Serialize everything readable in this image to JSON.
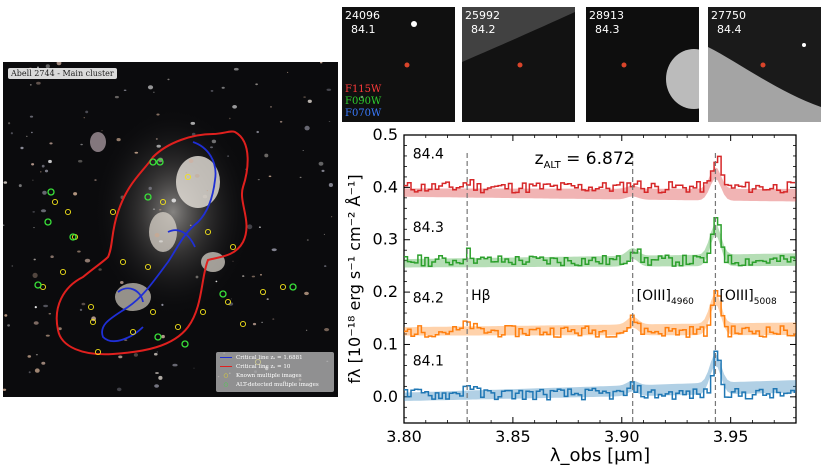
{
  "cluster_image": {
    "title": "Abell 2744 - Main cluster",
    "legend": [
      {
        "label": "Critical line zₛ = 1.6881",
        "color": "#1f2fd6",
        "kind": "line"
      },
      {
        "label": "Critical line zₛ = 10",
        "color": "#e0201e",
        "kind": "line"
      },
      {
        "label": "Known multiple images",
        "color": "#f2e21a",
        "kind": "ring"
      },
      {
        "label": "ALT-detected multiple images",
        "color": "#3ae23a",
        "kind": "ring"
      }
    ]
  },
  "thumbnails": [
    {
      "id": "24096",
      "label": "84.1"
    },
    {
      "id": "25992",
      "label": "84.2"
    },
    {
      "id": "28913",
      "label": "84.3"
    },
    {
      "id": "27750",
      "label": "84.4"
    }
  ],
  "filters": [
    {
      "name": "F115W",
      "color": "#ff3b3b"
    },
    {
      "name": "F090W",
      "color": "#2fcf2f"
    },
    {
      "name": "F070W",
      "color": "#3a7bff"
    }
  ],
  "chart_data": {
    "type": "line",
    "title": "z_ALT = 6.872",
    "redshift_label": "z",
    "redshift_sub": "ALT",
    "redshift_value": "= 6.872",
    "xlabel": "λ_obs [μm]",
    "ylabel": "fλ [10⁻¹⁸ erg s⁻¹ cm⁻² Å⁻¹]",
    "xlim": [
      3.8,
      3.98
    ],
    "ylim": [
      -0.05,
      0.5
    ],
    "xticks": [
      3.8,
      3.85,
      3.9,
      3.95
    ],
    "xtick_labels": [
      "3.80",
      "3.85",
      "3.90",
      "3.95"
    ],
    "yticks": [
      0.0,
      0.1,
      0.2,
      0.3,
      0.4,
      0.5
    ],
    "ytick_labels": [
      "0.0",
      "0.1",
      "0.2",
      "0.3",
      "0.4",
      "0.5"
    ],
    "lines": [
      {
        "name": "Hβ",
        "x": 3.829
      },
      {
        "name": "[OIII]",
        "sub": "4960",
        "x": 3.905
      },
      {
        "name": "[OIII]",
        "sub": "5008",
        "x": 3.943
      }
    ],
    "series": [
      {
        "name": "84.4",
        "color": "#d62728",
        "baseline": 0.4,
        "model_start": 0.39,
        "model_end": 0.385,
        "peak": 0.46,
        "peak_minor": 0.41,
        "peak_hb": 0.41
      },
      {
        "name": "84.3",
        "color": "#2ca02c",
        "baseline": 0.26,
        "model_start": 0.255,
        "model_end": 0.262,
        "peak": 0.345,
        "peak_minor": 0.285,
        "peak_hb": 0.275
      },
      {
        "name": "84.2",
        "color": "#ff7f0e",
        "baseline": 0.125,
        "model_start": 0.125,
        "model_end": 0.13,
        "peak": 0.21,
        "peak_minor": 0.15,
        "peak_hb": 0.14
      },
      {
        "name": "84.1",
        "color": "#1f77b4",
        "baseline": 0.005,
        "model_start": 0.0,
        "model_end": 0.02,
        "peak": 0.085,
        "peak_minor": 0.02,
        "peak_hb": 0.025
      }
    ]
  }
}
